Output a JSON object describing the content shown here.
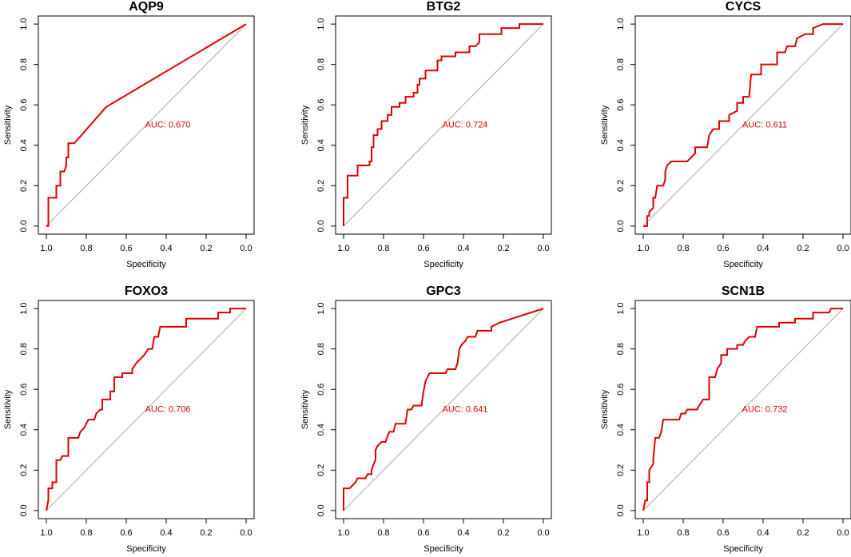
{
  "chart_data": [
    {
      "type": "line",
      "title": "AQP9",
      "xlabel": "Specificity",
      "ylabel": "Sensitivity",
      "annotation": "AUC: 0.670",
      "color": "#e00000",
      "xlim": [
        1.04,
        -0.04
      ],
      "ylim": [
        -0.04,
        1.04
      ],
      "xticks": [
        {
          "value": 1,
          "label": "1.0"
        },
        0.8,
        0.6,
        0.4,
        0.2,
        {
          "value": 0,
          "label": "0.0"
        }
      ],
      "yticks": [
        {
          "value": 0,
          "label": "0.0"
        },
        0.2,
        0.4,
        0.6,
        0.8,
        {
          "value": 1,
          "label": "1.0"
        }
      ],
      "x": [
        1,
        0.99,
        0.99,
        0.95,
        0.95,
        0.93,
        0.93,
        0.91,
        0.9,
        0.9,
        0.89,
        0.89,
        0.86,
        0.7,
        0
      ],
      "values": [
        0,
        0,
        0.14,
        0.14,
        0.2,
        0.2,
        0.27,
        0.27,
        0.3,
        0.34,
        0.34,
        0.41,
        0.41,
        0.59,
        1
      ]
    },
    {
      "type": "line",
      "title": "BTG2",
      "xlabel": "Specificity",
      "ylabel": "Sensitivity",
      "annotation": "AUC: 0.724",
      "color": "#e00000",
      "xlim": [
        1.04,
        -0.04
      ],
      "ylim": [
        -0.04,
        1.04
      ],
      "xticks": [
        {
          "value": 1,
          "label": "1.0"
        },
        0.8,
        0.6,
        0.4,
        0.2,
        {
          "value": 0,
          "label": "0.0"
        }
      ],
      "yticks": [
        {
          "value": 0,
          "label": "0.0"
        },
        0.2,
        0.4,
        0.6,
        0.8,
        {
          "value": 1,
          "label": "1.0"
        }
      ],
      "x": [
        1,
        1,
        0.98,
        0.98,
        0.93,
        0.93,
        0.87,
        0.87,
        0.86,
        0.86,
        0.85,
        0.85,
        0.83,
        0.83,
        0.81,
        0.81,
        0.78,
        0.78,
        0.76,
        0.76,
        0.72,
        0.72,
        0.69,
        0.69,
        0.65,
        0.65,
        0.63,
        0.63,
        0.62,
        0.62,
        0.59,
        0.59,
        0.53,
        0.53,
        0.51,
        0.51,
        0.44,
        0.44,
        0.37,
        0.37,
        0.34,
        0.32,
        0.32,
        0.21,
        0.21,
        0.12,
        0.12,
        0
      ],
      "values": [
        0,
        0.14,
        0.14,
        0.25,
        0.25,
        0.3,
        0.3,
        0.32,
        0.32,
        0.39,
        0.39,
        0.45,
        0.45,
        0.48,
        0.48,
        0.52,
        0.52,
        0.55,
        0.55,
        0.59,
        0.59,
        0.61,
        0.61,
        0.64,
        0.64,
        0.66,
        0.66,
        0.7,
        0.7,
        0.73,
        0.73,
        0.77,
        0.77,
        0.82,
        0.82,
        0.84,
        0.84,
        0.86,
        0.86,
        0.89,
        0.89,
        0.91,
        0.95,
        0.95,
        0.98,
        0.98,
        1,
        1
      ]
    },
    {
      "type": "line",
      "title": "CYCS",
      "xlabel": "Specificity",
      "ylabel": "Sensitivity",
      "annotation": "AUC: 0.611",
      "color": "#e00000",
      "xlim": [
        1.04,
        -0.04
      ],
      "ylim": [
        -0.04,
        1.04
      ],
      "xticks": [
        {
          "value": 1,
          "label": "1.0"
        },
        0.8,
        0.6,
        0.4,
        0.2,
        {
          "value": 0,
          "label": "0.0"
        }
      ],
      "yticks": [
        {
          "value": 0,
          "label": "0.0"
        },
        0.2,
        0.4,
        0.6,
        0.8,
        {
          "value": 1,
          "label": "1.0"
        }
      ],
      "x": [
        1,
        0.98,
        0.98,
        0.97,
        0.97,
        0.95,
        0.95,
        0.94,
        0.93,
        0.9,
        0.89,
        0.89,
        0.88,
        0.86,
        0.78,
        0.74,
        0.74,
        0.68,
        0.67,
        0.65,
        0.62,
        0.62,
        0.57,
        0.57,
        0.53,
        0.53,
        0.5,
        0.5,
        0.47,
        0.46,
        0.41,
        0.41,
        0.33,
        0.33,
        0.29,
        0.28,
        0.24,
        0.23,
        0.19,
        0.15,
        0.15,
        0.1,
        0
      ],
      "values": [
        0,
        0,
        0.05,
        0.05,
        0.07,
        0.09,
        0.14,
        0.14,
        0.2,
        0.2,
        0.23,
        0.27,
        0.3,
        0.32,
        0.32,
        0.36,
        0.39,
        0.39,
        0.45,
        0.48,
        0.48,
        0.52,
        0.52,
        0.55,
        0.57,
        0.61,
        0.61,
        0.64,
        0.64,
        0.75,
        0.75,
        0.8,
        0.8,
        0.86,
        0.86,
        0.89,
        0.89,
        0.93,
        0.95,
        0.95,
        0.98,
        1,
        1
      ]
    },
    {
      "type": "line",
      "title": "FOXO3",
      "xlabel": "Specificity",
      "ylabel": "Sensitivity",
      "annotation": "AUC: 0.706",
      "color": "#e00000",
      "xlim": [
        1.04,
        -0.04
      ],
      "ylim": [
        -0.04,
        1.04
      ],
      "xticks": [
        {
          "value": 1,
          "label": "1.0"
        },
        0.8,
        0.6,
        0.4,
        0.2,
        {
          "value": 0,
          "label": "0.0"
        }
      ],
      "yticks": [
        {
          "value": 0,
          "label": "0.0"
        },
        0.2,
        0.4,
        0.6,
        0.8,
        {
          "value": 1,
          "label": "1.0"
        }
      ],
      "x": [
        1,
        0.99,
        0.99,
        0.97,
        0.97,
        0.95,
        0.95,
        0.93,
        0.92,
        0.89,
        0.89,
        0.84,
        0.83,
        0.81,
        0.8,
        0.79,
        0.76,
        0.75,
        0.73,
        0.72,
        0.72,
        0.68,
        0.68,
        0.66,
        0.66,
        0.62,
        0.62,
        0.57,
        0.57,
        0.55,
        0.53,
        0.51,
        0.49,
        0.47,
        0.46,
        0.44,
        0.43,
        0.3,
        0.3,
        0.14,
        0.14,
        0.08,
        0.08,
        0
      ],
      "values": [
        0,
        0.05,
        0.11,
        0.11,
        0.14,
        0.14,
        0.25,
        0.25,
        0.27,
        0.27,
        0.36,
        0.36,
        0.39,
        0.41,
        0.43,
        0.45,
        0.45,
        0.48,
        0.5,
        0.5,
        0.55,
        0.55,
        0.59,
        0.59,
        0.66,
        0.66,
        0.68,
        0.68,
        0.7,
        0.73,
        0.75,
        0.77,
        0.8,
        0.8,
        0.86,
        0.86,
        0.91,
        0.91,
        0.95,
        0.95,
        0.98,
        0.98,
        1,
        1
      ]
    },
    {
      "type": "line",
      "title": "GPC3",
      "xlabel": "Specificity",
      "ylabel": "Sensitivity",
      "annotation": "AUC: 0.641",
      "color": "#e00000",
      "xlim": [
        1.04,
        -0.04
      ],
      "ylim": [
        -0.04,
        1.04
      ],
      "xticks": [
        {
          "value": 1,
          "label": "1.0"
        },
        0.8,
        0.6,
        0.4,
        0.2,
        {
          "value": 0,
          "label": "0.0"
        }
      ],
      "yticks": [
        {
          "value": 0,
          "label": "0.0"
        },
        0.2,
        0.4,
        0.6,
        0.8,
        {
          "value": 1,
          "label": "1.0"
        }
      ],
      "x": [
        1,
        1,
        0.97,
        0.94,
        0.93,
        0.89,
        0.88,
        0.86,
        0.86,
        0.85,
        0.84,
        0.84,
        0.83,
        0.81,
        0.79,
        0.78,
        0.77,
        0.75,
        0.74,
        0.69,
        0.68,
        0.66,
        0.65,
        0.61,
        0.6,
        0.59,
        0.57,
        0.49,
        0.48,
        0.44,
        0.43,
        0.42,
        0.41,
        0.39,
        0.38,
        0.34,
        0.33,
        0.26,
        0.26,
        0.22,
        0
      ],
      "values": [
        0,
        0.11,
        0.11,
        0.14,
        0.16,
        0.16,
        0.18,
        0.18,
        0.2,
        0.23,
        0.25,
        0.3,
        0.32,
        0.34,
        0.34,
        0.37,
        0.39,
        0.39,
        0.43,
        0.43,
        0.5,
        0.5,
        0.52,
        0.52,
        0.59,
        0.64,
        0.68,
        0.68,
        0.7,
        0.7,
        0.73,
        0.8,
        0.82,
        0.84,
        0.86,
        0.86,
        0.89,
        0.89,
        0.91,
        0.93,
        1
      ]
    },
    {
      "type": "line",
      "title": "SCN1B",
      "xlabel": "Specificity",
      "ylabel": "Sensitivity",
      "annotation": "AUC: 0.732",
      "color": "#e00000",
      "xlim": [
        1.04,
        -0.04
      ],
      "ylim": [
        -0.04,
        1.04
      ],
      "xticks": [
        {
          "value": 1,
          "label": "1.0"
        },
        0.8,
        0.6,
        0.4,
        0.2,
        {
          "value": 0,
          "label": "0.0"
        }
      ],
      "yticks": [
        {
          "value": 0,
          "label": "0.0"
        },
        0.2,
        0.4,
        0.6,
        0.8,
        {
          "value": 1,
          "label": "1.0"
        }
      ],
      "x": [
        1,
        0.99,
        0.98,
        0.98,
        0.97,
        0.97,
        0.95,
        0.95,
        0.94,
        0.92,
        0.91,
        0.9,
        0.82,
        0.81,
        0.79,
        0.78,
        0.73,
        0.72,
        0.7,
        0.67,
        0.67,
        0.64,
        0.63,
        0.61,
        0.61,
        0.58,
        0.58,
        0.53,
        0.53,
        0.5,
        0.49,
        0.47,
        0.44,
        0.43,
        0.32,
        0.32,
        0.24,
        0.24,
        0.15,
        0.15,
        0.07,
        0.06,
        0
      ],
      "values": [
        0,
        0.05,
        0.05,
        0.14,
        0.14,
        0.2,
        0.23,
        0.25,
        0.36,
        0.36,
        0.39,
        0.45,
        0.45,
        0.48,
        0.48,
        0.5,
        0.5,
        0.52,
        0.55,
        0.55,
        0.66,
        0.66,
        0.7,
        0.73,
        0.77,
        0.77,
        0.8,
        0.8,
        0.82,
        0.82,
        0.84,
        0.86,
        0.86,
        0.91,
        0.91,
        0.93,
        0.93,
        0.95,
        0.95,
        0.98,
        0.98,
        1,
        1
      ]
    }
  ]
}
